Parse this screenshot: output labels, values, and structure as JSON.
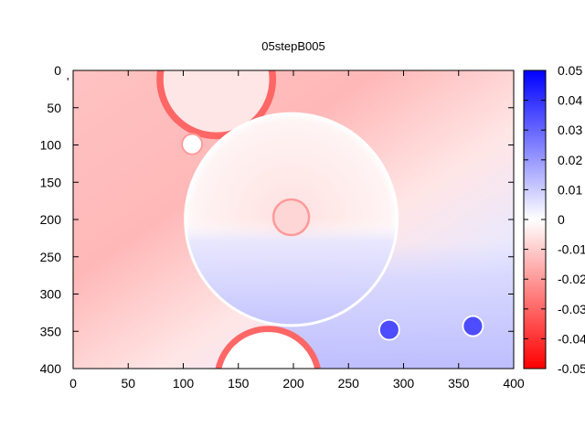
{
  "chart_data": {
    "type": "heatmap",
    "title": "05stepB005",
    "xlabel": "",
    "ylabel": "",
    "xlim": [
      0,
      400
    ],
    "ylim": [
      400,
      0
    ],
    "x_ticks": [
      0,
      50,
      100,
      150,
      200,
      250,
      300,
      350,
      400
    ],
    "y_ticks": [
      0,
      50,
      100,
      150,
      200,
      250,
      300,
      350,
      400
    ],
    "colorbar": {
      "range": [
        -0.05,
        0.05
      ],
      "ticks": [
        0.05,
        0.04,
        0.03,
        0.02,
        0.01,
        0,
        -0.01,
        -0.02,
        -0.03,
        -0.04,
        -0.05
      ],
      "tick_labels": [
        "0.05",
        "0.04",
        "0.03",
        "0.02",
        "0.01",
        "0",
        "-0.01",
        "-0.02",
        "-0.03",
        "-0.04",
        "-0.05"
      ],
      "colors": {
        "low": "#ff0000",
        "mid": "#ffffff",
        "high": "#0000ff"
      }
    },
    "fragment_label": "'",
    "features": [
      {
        "shape": "circle",
        "cx": 130,
        "cy": 12,
        "r": 52,
        "value": -0.005,
        "rim": -0.03
      },
      {
        "shape": "circle",
        "cx": 108,
        "cy": 99,
        "r": 10,
        "value": 0.0,
        "rim": -0.02
      },
      {
        "shape": "circle",
        "cx": 198,
        "cy": 200,
        "r": 97,
        "value": -0.005,
        "rim": 0.003
      },
      {
        "shape": "circle",
        "cx": 198,
        "cy": 197,
        "r": 17,
        "value": -0.008,
        "rim": -0.02
      },
      {
        "shape": "circle",
        "cx": 287,
        "cy": 348,
        "r": 10,
        "value": 0.035,
        "rim": 0.0
      },
      {
        "shape": "circle",
        "cx": 363,
        "cy": 343,
        "r": 10,
        "value": 0.035,
        "rim": 0.0
      },
      {
        "shape": "circle",
        "cx": 177,
        "cy": 415,
        "r": 47,
        "value": 0.0,
        "rim": -0.03
      }
    ]
  }
}
